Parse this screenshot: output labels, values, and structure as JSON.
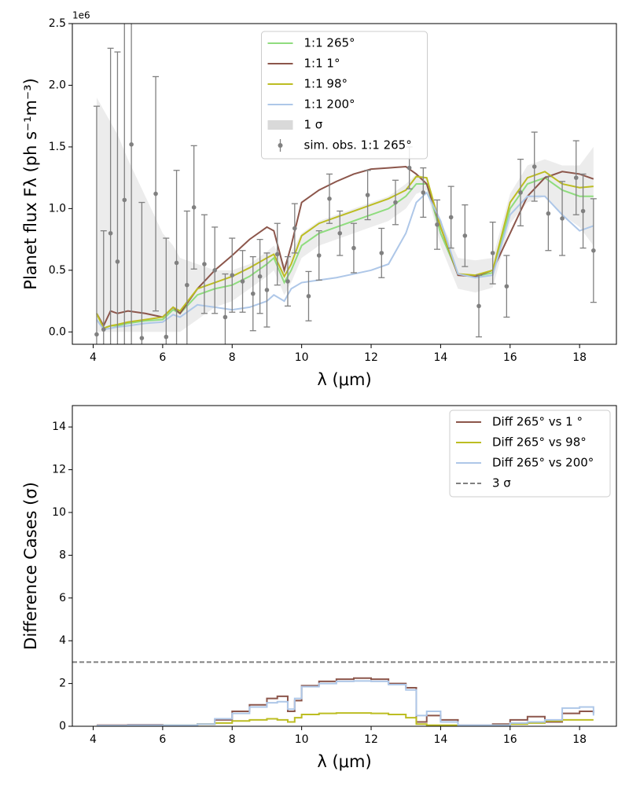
{
  "chart_data": [
    {
      "type": "line",
      "y_label": "Planet flux Fλ (ph s⁻¹m⁻³)",
      "x_label": "λ (μm)",
      "y_offset_label": "1e6",
      "xlim": [
        3.4,
        19.06
      ],
      "ylim": [
        -0.1,
        2.5
      ],
      "xticks": [
        4,
        6,
        8,
        10,
        12,
        14,
        16,
        18
      ],
      "yticks": [
        {
          "value": 0,
          "label": "0.0"
        },
        {
          "value": 0.5,
          "label": "0.5"
        },
        {
          "value": 1,
          "label": "1.0"
        },
        {
          "value": 1.5,
          "label": "1.5"
        },
        {
          "value": 2,
          "label": "2.0"
        },
        {
          "value": 2.5,
          "label": "2.5"
        }
      ],
      "legend": "upper center",
      "x": [
        4.1,
        4.3,
        4.5,
        4.7,
        5,
        5.5,
        6,
        6.3,
        6.5,
        7,
        7.5,
        8,
        8.5,
        9,
        9.2,
        9.5,
        9.7,
        10,
        10.5,
        11,
        11.5,
        12,
        12.5,
        13,
        13.3,
        13.6,
        14,
        14.5,
        15,
        15.5,
        16,
        16.5,
        17,
        17.5,
        18,
        18.4
      ],
      "series": [
        {
          "name": "1:1 265°",
          "kind": "line",
          "color": "#8fdc7e",
          "values": [
            0.15,
            0.03,
            0.05,
            0.05,
            0.07,
            0.09,
            0.1,
            0.18,
            0.15,
            0.3,
            0.35,
            0.38,
            0.45,
            0.55,
            0.6,
            0.4,
            0.5,
            0.7,
            0.8,
            0.85,
            0.9,
            0.95,
            1.0,
            1.1,
            1.2,
            1.2,
            0.8,
            0.47,
            0.45,
            0.48,
            1.0,
            1.2,
            1.25,
            1.15,
            1.1,
            1.1
          ]
        },
        {
          "name": "1:1 1°",
          "kind": "line",
          "color": "#8c564b",
          "values": [
            0.15,
            0.05,
            0.17,
            0.15,
            0.17,
            0.15,
            0.12,
            0.2,
            0.15,
            0.35,
            0.5,
            0.62,
            0.75,
            0.85,
            0.82,
            0.5,
            0.7,
            1.05,
            1.15,
            1.22,
            1.28,
            1.32,
            1.33,
            1.34,
            1.28,
            1.2,
            0.85,
            0.46,
            0.45,
            0.5,
            0.8,
            1.1,
            1.25,
            1.3,
            1.28,
            1.24
          ]
        },
        {
          "name": "1:1 98°",
          "kind": "line",
          "color": "#bcbd22",
          "values": [
            0.15,
            0.03,
            0.05,
            0.06,
            0.08,
            0.1,
            0.12,
            0.2,
            0.17,
            0.35,
            0.4,
            0.45,
            0.52,
            0.6,
            0.63,
            0.45,
            0.55,
            0.78,
            0.88,
            0.93,
            0.98,
            1.03,
            1.08,
            1.15,
            1.26,
            1.25,
            0.85,
            0.47,
            0.46,
            0.5,
            1.05,
            1.25,
            1.3,
            1.2,
            1.17,
            1.18
          ]
        },
        {
          "name": "1:1 200°",
          "kind": "line",
          "color": "#aec7e8",
          "values": [
            0.1,
            0.02,
            0.03,
            0.04,
            0.05,
            0.07,
            0.08,
            0.14,
            0.12,
            0.22,
            0.2,
            0.18,
            0.2,
            0.25,
            0.3,
            0.25,
            0.35,
            0.4,
            0.42,
            0.44,
            0.47,
            0.5,
            0.55,
            0.8,
            1.05,
            1.13,
            0.9,
            0.47,
            0.44,
            0.46,
            0.95,
            1.1,
            1.1,
            0.95,
            0.82,
            0.86
          ]
        },
        {
          "name": "1 σ",
          "kind": "band",
          "color": "#d9d9d9",
          "upper": [
            1.9,
            1.8,
            1.7,
            1.6,
            1.4,
            1.1,
            0.8,
            0.7,
            0.6,
            0.55,
            0.5,
            0.5,
            0.55,
            0.65,
            0.7,
            0.55,
            0.65,
            0.8,
            0.9,
            0.95,
            1.0,
            1.05,
            1.1,
            1.2,
            1.28,
            1.25,
            0.9,
            0.6,
            0.58,
            0.6,
            1.12,
            1.35,
            1.4,
            1.35,
            1.35,
            1.5
          ],
          "lower": [
            0,
            0,
            0,
            0,
            0,
            0,
            0,
            0,
            0,
            0.1,
            0.2,
            0.25,
            0.35,
            0.45,
            0.5,
            0.3,
            0.4,
            0.6,
            0.7,
            0.75,
            0.8,
            0.85,
            0.9,
            1.0,
            1.12,
            1.15,
            0.7,
            0.35,
            0.32,
            0.36,
            0.88,
            1.05,
            1.1,
            0.95,
            0.85,
            0.7
          ]
        },
        {
          "name": "sim. obs. 1:1 265°",
          "kind": "errorbar",
          "color": "#808080",
          "x": [
            4.1,
            4.3,
            4.5,
            4.7,
            4.9,
            5.1,
            5.4,
            5.8,
            6.1,
            6.4,
            6.7,
            6.9,
            7.2,
            7.5,
            7.8,
            8.0,
            8.3,
            8.6,
            8.8,
            9.0,
            9.3,
            9.6,
            9.8,
            10.2,
            10.5,
            10.8,
            11.1,
            11.5,
            11.9,
            12.3,
            12.7,
            13.1,
            13.5,
            13.9,
            14.3,
            14.7,
            15.1,
            15.5,
            15.9,
            16.3,
            16.7,
            17.1,
            17.5,
            17.9,
            18.1,
            18.4
          ],
          "values": [
            -0.02,
            0.02,
            0.8,
            0.57,
            1.07,
            1.52,
            -0.05,
            1.12,
            -0.04,
            0.56,
            0.38,
            1.01,
            0.55,
            0.5,
            0.12,
            0.46,
            0.41,
            0.31,
            0.45,
            0.34,
            0.63,
            0.41,
            0.84,
            0.29,
            0.62,
            1.08,
            0.8,
            0.68,
            1.11,
            0.64,
            1.05,
            1.33,
            1.13,
            0.87,
            0.93,
            0.78,
            0.21,
            0.64,
            0.37,
            1.13,
            1.34,
            0.96,
            0.92,
            1.25,
            0.98,
            0.66
          ],
          "errors": [
            1.85,
            0.8,
            1.5,
            1.7,
            1.9,
            1.8,
            1.1,
            0.95,
            0.8,
            0.75,
            0.6,
            0.5,
            0.4,
            0.35,
            0.35,
            0.3,
            0.25,
            0.3,
            0.3,
            0.3,
            0.25,
            0.2,
            0.2,
            0.2,
            0.2,
            0.2,
            0.18,
            0.2,
            0.2,
            0.2,
            0.18,
            0.17,
            0.2,
            0.2,
            0.25,
            0.25,
            0.25,
            0.25,
            0.25,
            0.27,
            0.28,
            0.3,
            0.3,
            0.3,
            0.3,
            0.42
          ]
        }
      ]
    },
    {
      "type": "line",
      "y_label": "Difference Cases (σ)",
      "x_label": "λ (μm)",
      "xlim": [
        3.4,
        19.06
      ],
      "ylim": [
        0,
        15
      ],
      "xticks": [
        4,
        6,
        8,
        10,
        12,
        14,
        16,
        18
      ],
      "yticks": [
        0,
        2,
        4,
        6,
        8,
        10,
        12,
        14
      ],
      "legend": "upper right",
      "x": [
        4.1,
        5,
        6,
        7,
        7.5,
        8,
        8.5,
        9,
        9.3,
        9.6,
        9.8,
        10,
        10.5,
        11,
        11.5,
        12,
        12.5,
        13,
        13.3,
        13.6,
        14,
        14.5,
        15,
        15.5,
        16,
        16.5,
        17,
        17.5,
        18,
        18.4
      ],
      "series": [
        {
          "name": "Diff 265° vs 1 °",
          "kind": "step",
          "color": "#8c564b",
          "values": [
            0.05,
            0.07,
            0.05,
            0.1,
            0.3,
            0.7,
            1.0,
            1.3,
            1.4,
            0.7,
            1.2,
            1.9,
            2.1,
            2.2,
            2.25,
            2.2,
            2.0,
            1.8,
            0.2,
            0.5,
            0.3,
            0.05,
            0.05,
            0.1,
            0.3,
            0.45,
            0.2,
            0.6,
            0.7,
            0.6
          ]
        },
        {
          "name": "Diff 265° vs 98°",
          "kind": "step",
          "color": "#bcbd22",
          "values": [
            0.02,
            0.03,
            0.05,
            0.1,
            0.15,
            0.25,
            0.3,
            0.35,
            0.3,
            0.2,
            0.4,
            0.55,
            0.6,
            0.62,
            0.62,
            0.6,
            0.55,
            0.4,
            0.1,
            0.05,
            0.05,
            0.02,
            0.03,
            0.05,
            0.1,
            0.15,
            0.25,
            0.3,
            0.3,
            0.3
          ]
        },
        {
          "name": "Diff 265° vs 200°",
          "kind": "step",
          "color": "#aec7e8",
          "values": [
            0.03,
            0.05,
            0.05,
            0.1,
            0.35,
            0.6,
            0.9,
            1.1,
            1.15,
            0.8,
            1.3,
            1.85,
            2.0,
            2.1,
            2.12,
            2.1,
            1.95,
            1.7,
            0.5,
            0.7,
            0.2,
            0.05,
            0.05,
            0.05,
            0.15,
            0.2,
            0.3,
            0.85,
            0.9,
            0.5
          ]
        },
        {
          "name": "3 σ",
          "kind": "hline",
          "color": "#808080",
          "value": 3
        }
      ]
    }
  ]
}
